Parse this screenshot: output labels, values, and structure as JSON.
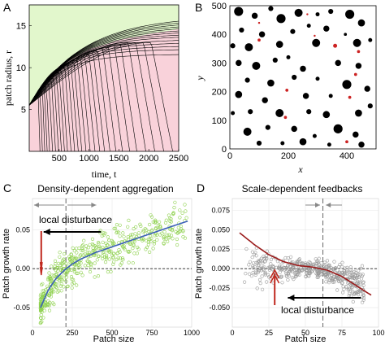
{
  "chart_data": [
    {
      "panel_letter": "A",
      "type": "line",
      "title": "",
      "xlabel": "time, t",
      "ylabel": "patch radius, r",
      "xlim": [
        0,
        2500
      ],
      "ylim": [
        0,
        17.5
      ],
      "xticks": [
        500,
        1000,
        1500,
        2000,
        2500
      ],
      "yticks": [
        5,
        10,
        15
      ],
      "boundary": {
        "x": [
          0,
          500,
          1000,
          1500,
          2000,
          2500
        ],
        "y": [
          5.5,
          10.2,
          12.2,
          13.3,
          14.0,
          14.6
        ]
      },
      "region_colors": {
        "growth": "#e2f7cc",
        "shrink": "#f9d2da"
      },
      "line_color": "#000000",
      "growing_series_final_r": [
        11.6,
        12.2,
        12.6,
        13.0,
        13.4,
        13.8,
        14.1,
        14.4,
        14.7,
        15.0,
        15.3,
        15.6,
        15.9,
        16.2
      ],
      "collapse_times": [
        180,
        220,
        260,
        300,
        340,
        390,
        440,
        490,
        540,
        590,
        640,
        700,
        760,
        820,
        880,
        950,
        1020,
        1100,
        1180,
        1260,
        1350,
        1450,
        1560,
        1680,
        1800,
        1950,
        2100,
        2250,
        2400
      ],
      "grid": false
    },
    {
      "panel_letter": "B",
      "type": "scatter",
      "title": "",
      "xlabel": "x",
      "ylabel": "y",
      "xlim": [
        0,
        500
      ],
      "ylim": [
        0,
        500
      ],
      "xticks": [
        0,
        200,
        400
      ],
      "yticks": [
        0,
        100,
        200,
        300,
        400,
        500
      ],
      "grid": false,
      "colors": {
        "growing": "#000000",
        "shrinking": "#cc2222"
      },
      "growing": [
        {
          "x": 30,
          "y": 480,
          "r": 9
        },
        {
          "x": 85,
          "y": 465,
          "r": 6
        },
        {
          "x": 140,
          "y": 490,
          "r": 5
        },
        {
          "x": 175,
          "y": 455,
          "r": 9
        },
        {
          "x": 235,
          "y": 475,
          "r": 8
        },
        {
          "x": 300,
          "y": 470,
          "r": 4
        },
        {
          "x": 345,
          "y": 480,
          "r": 5
        },
        {
          "x": 410,
          "y": 470,
          "r": 9
        },
        {
          "x": 450,
          "y": 440,
          "r": 7
        },
        {
          "x": 40,
          "y": 415,
          "r": 5
        },
        {
          "x": 110,
          "y": 400,
          "r": 6
        },
        {
          "x": 215,
          "y": 410,
          "r": 5
        },
        {
          "x": 270,
          "y": 430,
          "r": 4
        },
        {
          "x": 330,
          "y": 420,
          "r": 6
        },
        {
          "x": 395,
          "y": 400,
          "r": 3
        },
        {
          "x": 10,
          "y": 360,
          "r": 5
        },
        {
          "x": 65,
          "y": 355,
          "r": 8
        },
        {
          "x": 170,
          "y": 365,
          "r": 7
        },
        {
          "x": 295,
          "y": 370,
          "r": 8
        },
        {
          "x": 435,
          "y": 370,
          "r": 8
        },
        {
          "x": 480,
          "y": 380,
          "r": 4
        },
        {
          "x": 30,
          "y": 300,
          "r": 6
        },
        {
          "x": 90,
          "y": 290,
          "r": 8
        },
        {
          "x": 155,
          "y": 310,
          "r": 5
        },
        {
          "x": 200,
          "y": 320,
          "r": 4
        },
        {
          "x": 250,
          "y": 280,
          "r": 6
        },
        {
          "x": 370,
          "y": 300,
          "r": 6
        },
        {
          "x": 440,
          "y": 290,
          "r": 6
        },
        {
          "x": 60,
          "y": 240,
          "r": 5
        },
        {
          "x": 140,
          "y": 230,
          "r": 7
        },
        {
          "x": 220,
          "y": 250,
          "r": 5
        },
        {
          "x": 300,
          "y": 245,
          "r": 4
        },
        {
          "x": 400,
          "y": 225,
          "r": 9
        },
        {
          "x": 470,
          "y": 210,
          "r": 6
        },
        {
          "x": 30,
          "y": 190,
          "r": 7
        },
        {
          "x": 120,
          "y": 170,
          "r": 6
        },
        {
          "x": 260,
          "y": 185,
          "r": 6
        },
        {
          "x": 345,
          "y": 185,
          "r": 4
        },
        {
          "x": 480,
          "y": 150,
          "r": 5
        },
        {
          "x": 10,
          "y": 125,
          "r": 4
        },
        {
          "x": 70,
          "y": 130,
          "r": 5
        },
        {
          "x": 170,
          "y": 125,
          "r": 8
        },
        {
          "x": 270,
          "y": 130,
          "r": 5
        },
        {
          "x": 330,
          "y": 120,
          "r": 7
        },
        {
          "x": 440,
          "y": 125,
          "r": 7
        },
        {
          "x": 60,
          "y": 60,
          "r": 8
        },
        {
          "x": 130,
          "y": 75,
          "r": 5
        },
        {
          "x": 220,
          "y": 70,
          "r": 6
        },
        {
          "x": 290,
          "y": 45,
          "r": 4
        },
        {
          "x": 370,
          "y": 70,
          "r": 9
        },
        {
          "x": 430,
          "y": 50,
          "r": 6
        },
        {
          "x": 100,
          "y": 20,
          "r": 5
        },
        {
          "x": 180,
          "y": 20,
          "r": 4
        },
        {
          "x": 250,
          "y": 25,
          "r": 7
        },
        {
          "x": 340,
          "y": 15,
          "r": 4
        },
        {
          "x": 450,
          "y": 15,
          "r": 6
        }
      ],
      "shrinking": [
        {
          "x": 100,
          "y": 380,
          "r": 3
        },
        {
          "x": 265,
          "y": 470,
          "r": 2
        },
        {
          "x": 360,
          "y": 360,
          "r": 4
        },
        {
          "x": 440,
          "y": 340,
          "r": 3
        },
        {
          "x": 100,
          "y": 440,
          "r": 2
        },
        {
          "x": 195,
          "y": 205,
          "r": 3
        },
        {
          "x": 190,
          "y": 110,
          "r": 3
        },
        {
          "x": 410,
          "y": 180,
          "r": 3
        },
        {
          "x": 430,
          "y": 260,
          "r": 3
        },
        {
          "x": 400,
          "y": 25,
          "r": 3
        },
        {
          "x": 290,
          "y": 395,
          "r": 2
        }
      ]
    },
    {
      "panel_letter": "C",
      "type": "scatter",
      "title": "Density-dependent aggregation",
      "xlabel": "Patch size",
      "ylabel": "Patch growth rate",
      "xlim": [
        0,
        1000
      ],
      "ylim": [
        -0.075,
        0.09
      ],
      "xticks": [
        0,
        250,
        500,
        750,
        1000
      ],
      "yticks": [
        -0.05,
        0.0,
        0.05
      ],
      "ytick_labels": [
        "-0.05",
        "0.00",
        "0.05"
      ],
      "grid": true,
      "point_color": "#8fd14f",
      "fit_color": "#3a5fb8",
      "fit_curve": {
        "x": [
          50,
          100,
          150,
          200,
          250,
          300,
          400,
          500,
          600,
          700,
          800,
          900,
          975
        ],
        "y": [
          -0.05,
          -0.027,
          -0.012,
          -0.002,
          0.006,
          0.012,
          0.021,
          0.028,
          0.035,
          0.042,
          0.049,
          0.056,
          0.061
        ]
      },
      "threshold_x": 210,
      "zero_line": 0.0,
      "annotation": "local disturbance"
    },
    {
      "panel_letter": "D",
      "type": "scatter",
      "title": "Scale-dependent feedbacks",
      "xlabel": "Patch size",
      "ylabel": "Patch growth rate",
      "xlim": [
        0,
        100
      ],
      "ylim": [
        -0.075,
        0.09
      ],
      "xticks": [
        0,
        25,
        50,
        75,
        100
      ],
      "yticks": [
        -0.05,
        -0.025,
        0.0,
        0.025,
        0.05,
        0.075
      ],
      "ytick_labels": [
        "-0.050",
        "-0.025",
        "0.000",
        "0.025",
        "0.050",
        "0.075"
      ],
      "grid": true,
      "point_color": "#9a9a9a",
      "fit_color": "#9b1c1c",
      "fit_curve": {
        "x": [
          5,
          15,
          25,
          35,
          45,
          55,
          65,
          75,
          85,
          95
        ],
        "y": [
          0.046,
          0.031,
          0.018,
          0.009,
          0.004,
          0.002,
          -0.002,
          -0.01,
          -0.022,
          -0.034
        ]
      },
      "threshold_x": 62,
      "zero_line": 0.0,
      "annotation": "local disturbance"
    }
  ]
}
